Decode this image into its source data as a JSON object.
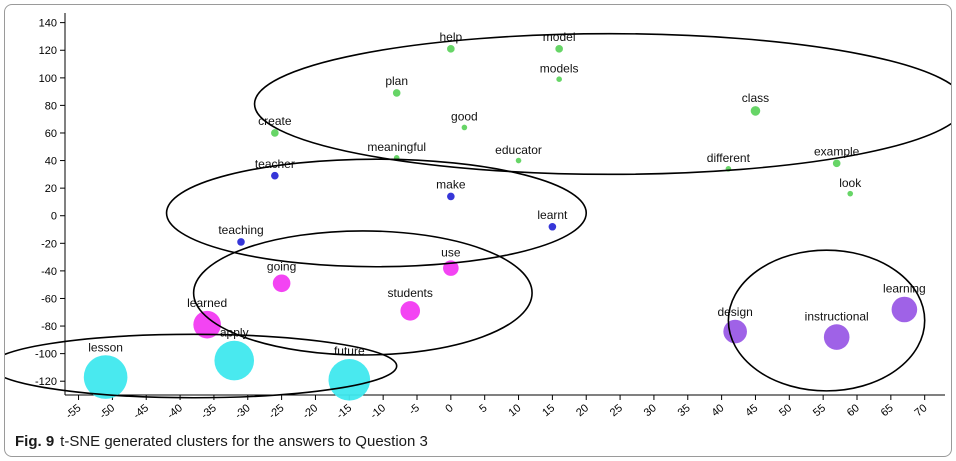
{
  "caption": {
    "label": "Fig. 9",
    "text": "t-SNE generated clusters for the answers to Question 3"
  },
  "chart_data": {
    "type": "scatter",
    "title": "",
    "xlabel": "",
    "ylabel": "",
    "xlim": [
      -57,
      73
    ],
    "ylim": [
      -130,
      147
    ],
    "xticks": [
      -55,
      -50,
      -45,
      -40,
      -35,
      -30,
      -25,
      -20,
      -15,
      -10,
      -5,
      0,
      5,
      10,
      15,
      20,
      25,
      30,
      35,
      40,
      45,
      50,
      55,
      60,
      65,
      70
    ],
    "yticks": [
      140,
      120,
      100,
      80,
      60,
      40,
      20,
      0,
      -20,
      -40,
      -60,
      -80,
      -100,
      -120
    ],
    "grid": false,
    "colors": {
      "green": "#5fd35f",
      "blue": "#2b2bd6",
      "magenta": "#f23af2",
      "cyan": "#3fe8ee",
      "purple": "#9a5ae6"
    },
    "points": [
      {
        "label": "help",
        "x": 0,
        "y": 121,
        "size": 2,
        "color": "green"
      },
      {
        "label": "model",
        "x": 16,
        "y": 121,
        "size": 2,
        "color": "green"
      },
      {
        "label": "models",
        "x": 16,
        "y": 99,
        "size": 1,
        "color": "green"
      },
      {
        "label": "plan",
        "x": -8,
        "y": 89,
        "size": 2,
        "color": "green"
      },
      {
        "label": "class",
        "x": 45,
        "y": 76,
        "size": 3,
        "color": "green"
      },
      {
        "label": "good",
        "x": 2,
        "y": 64,
        "size": 1,
        "color": "green"
      },
      {
        "label": "create",
        "x": -26,
        "y": 60,
        "size": 2,
        "color": "green"
      },
      {
        "label": "meaningful",
        "x": -8,
        "y": 42,
        "size": 1,
        "color": "green"
      },
      {
        "label": "educator",
        "x": 10,
        "y": 40,
        "size": 1,
        "color": "green"
      },
      {
        "label": "different",
        "x": 41,
        "y": 34,
        "size": 1,
        "color": "green"
      },
      {
        "label": "example",
        "x": 57,
        "y": 38,
        "size": 2,
        "color": "green"
      },
      {
        "label": "look",
        "x": 59,
        "y": 16,
        "size": 1,
        "color": "green"
      },
      {
        "label": "teacher",
        "x": -26,
        "y": 29,
        "size": 2,
        "color": "blue"
      },
      {
        "label": "make",
        "x": 0,
        "y": 14,
        "size": 2,
        "color": "blue"
      },
      {
        "label": "teaching",
        "x": -31,
        "y": -19,
        "size": 2,
        "color": "blue"
      },
      {
        "label": "learnt",
        "x": 15,
        "y": -8,
        "size": 2,
        "color": "blue"
      },
      {
        "label": "use",
        "x": 0,
        "y": -38,
        "size": 6,
        "color": "magenta"
      },
      {
        "label": "going",
        "x": -25,
        "y": -49,
        "size": 7,
        "color": "magenta"
      },
      {
        "label": "students",
        "x": -6,
        "y": -69,
        "size": 8,
        "color": "magenta"
      },
      {
        "label": "learned",
        "x": -36,
        "y": -79,
        "size": 12,
        "color": "magenta"
      },
      {
        "label": "lesson",
        "x": -51,
        "y": -117,
        "size": 20,
        "color": "cyan"
      },
      {
        "label": "apply",
        "x": -32,
        "y": -105,
        "size": 18,
        "color": "cyan"
      },
      {
        "label": "future",
        "x": -15,
        "y": -119,
        "size": 19,
        "color": "cyan"
      },
      {
        "label": "design",
        "x": 42,
        "y": -84,
        "size": 10,
        "color": "purple"
      },
      {
        "label": "instructional",
        "x": 57,
        "y": -88,
        "size": 11,
        "color": "purple"
      },
      {
        "label": "learning",
        "x": 67,
        "y": -68,
        "size": 11,
        "color": "purple"
      }
    ],
    "cluster_ellipses": [
      {
        "cx": 23.5,
        "cy": 81,
        "rx": 52.5,
        "ry": 51
      },
      {
        "cx": -11,
        "cy": 2,
        "rx": 31,
        "ry": 39
      },
      {
        "cx": -13,
        "cy": -56,
        "rx": 25,
        "ry": 45
      },
      {
        "cx": -38,
        "cy": -109,
        "rx": 30,
        "ry": 23
      },
      {
        "cx": 55.5,
        "cy": -76,
        "rx": 14.5,
        "ry": 51
      }
    ]
  }
}
